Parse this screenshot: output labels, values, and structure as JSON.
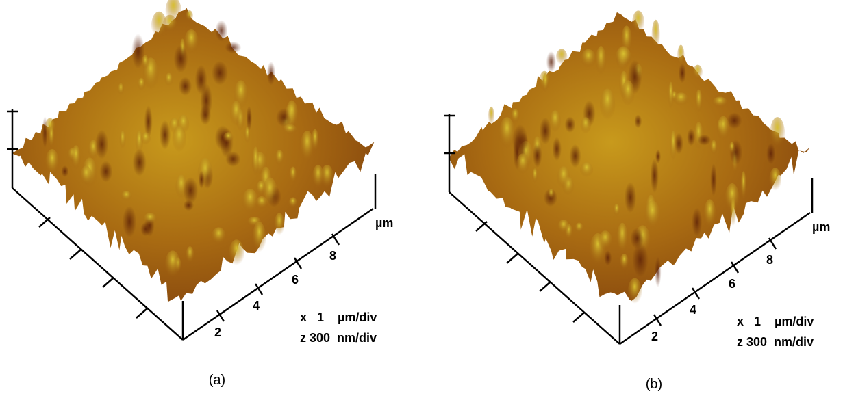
{
  "panels": [
    {
      "caption": "(a)",
      "axis_ticks": [
        "2",
        "4",
        "6",
        "8"
      ],
      "axis_unit": "µm",
      "scale_x": "x   1    µm/div",
      "scale_z": "z 300  nm/div"
    },
    {
      "caption": "(b)",
      "axis_ticks": [
        "2",
        "4",
        "6",
        "8"
      ],
      "axis_unit": "µm",
      "scale_x": "x   1    µm/div",
      "scale_z": "z 300  nm/div"
    }
  ]
}
